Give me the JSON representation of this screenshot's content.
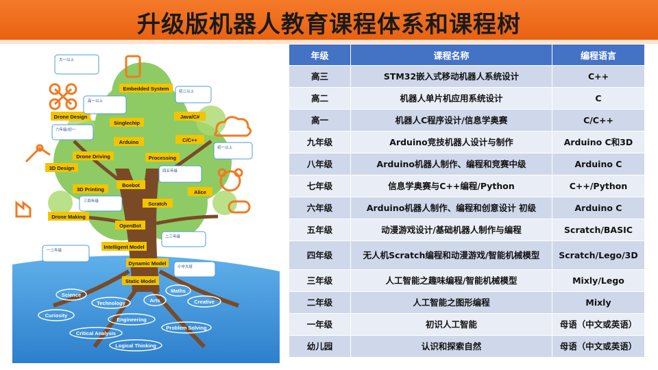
{
  "title": "升级版机器人教育课程体系和课程树",
  "table": {
    "headers": [
      "年级",
      "课程名称",
      "编程语言"
    ],
    "rows": [
      {
        "grade": "高三",
        "course": "STM32嵌入式移动机器人系统设计",
        "language": "C++"
      },
      {
        "grade": "高二",
        "course": "机器人单片机应用系统设计",
        "language": "C"
      },
      {
        "grade": "高一",
        "course": "机器人C程序设计/信息学奥赛",
        "language": "C/C++"
      },
      {
        "grade": "九年级",
        "course": "Arduino竞技机器人设计与制作",
        "language": "Arduino C和3D"
      },
      {
        "grade": "八年级",
        "course": "Arduino机器人制作、编程和竞赛中级",
        "language": "Arduino C"
      },
      {
        "grade": "七年级",
        "course": "信息学奥赛与C++编程/Python",
        "language": "C++/Python"
      },
      {
        "grade": "六年级",
        "course": "Arduino机器人制作、编程和创意设计 初级",
        "language": "Arduino C"
      },
      {
        "grade": "五年级",
        "course": "动漫游戏设计/基础机器人制作与编程",
        "language": "Scratch/BASIC"
      },
      {
        "grade": "四年级",
        "course": "无人机Scratch编程和动漫游戏/智能机械模型",
        "language": "Scratch/Lego/3D"
      },
      {
        "grade": "三年级",
        "course": "人工智能之趣味编程/智能机械模型",
        "language": "Mixly/Lego"
      },
      {
        "grade": "二年级",
        "course": "人工智能之图形编程",
        "language": "Mixly"
      },
      {
        "grade": "一年级",
        "course": "初识人工智能",
        "language": "母语（中文或英语）"
      },
      {
        "grade": "幼儿园",
        "course": "认识和探索自然",
        "language": "母语（中文或英语）"
      }
    ]
  },
  "tree": {
    "branch_labels": [
      "Embedded System",
      "Drone Design",
      "Singlechip",
      "Java/C#",
      "Arduino",
      "C/C++",
      "Drone Driving",
      "Processing",
      "3D Design",
      "Boebot",
      "3D Printing",
      "Alice",
      "Scratch",
      "Drone Making",
      "OpenBot",
      "Intelligent Model",
      "Dynamic Model",
      "Static Model"
    ],
    "root_labels": [
      "Science",
      "Technology",
      "Arts",
      "Maths",
      "Creative",
      "Curiosity",
      "Engineering",
      "Critical Analysis",
      "Problem Solving",
      "Logical Thinking"
    ],
    "bubble_headers": [
      "大一以上",
      "初二以上",
      "高一以上",
      "六年级/初一",
      "初一以上",
      "四五年级",
      "三四年级",
      "二三年级",
      "一二年级",
      "小中大班"
    ]
  },
  "colors": {
    "title_bar": "#f07020",
    "table_header": "#4472c4",
    "row_dark": "#cfd8ea",
    "row_light": "#e9edf5",
    "tree_label": "#f3c400",
    "sea": "#3a8fd6"
  }
}
